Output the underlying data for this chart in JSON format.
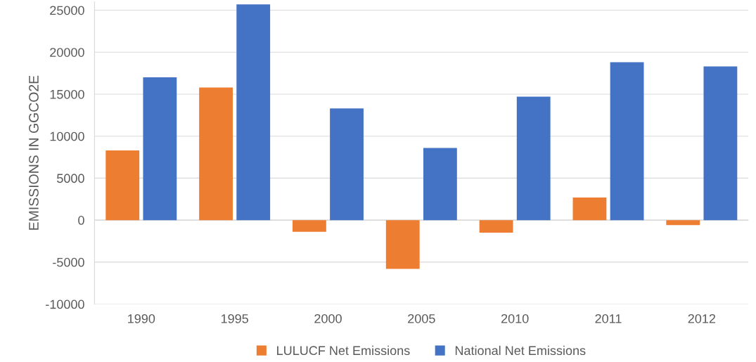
{
  "chart_data": {
    "type": "bar",
    "ylabel": "EMISSIONS IN GGCO2E",
    "categories": [
      "1990",
      "1995",
      "2000",
      "2005",
      "2010",
      "2011",
      "2012"
    ],
    "series": [
      {
        "name": "LULUCF Net Emissions",
        "color": "#ed7d31",
        "values": [
          8300,
          15800,
          -1400,
          -5800,
          -1500,
          2700,
          -600
        ]
      },
      {
        "name": "National Net Emissions",
        "color": "#4472c4",
        "values": [
          17000,
          25700,
          13300,
          8600,
          14700,
          18800,
          18300
        ]
      }
    ],
    "ylim": [
      -10000,
      26000
    ],
    "yticks": [
      -10000,
      -5000,
      0,
      5000,
      10000,
      15000,
      20000,
      25000
    ],
    "grid": "y",
    "legend": "bottom"
  }
}
